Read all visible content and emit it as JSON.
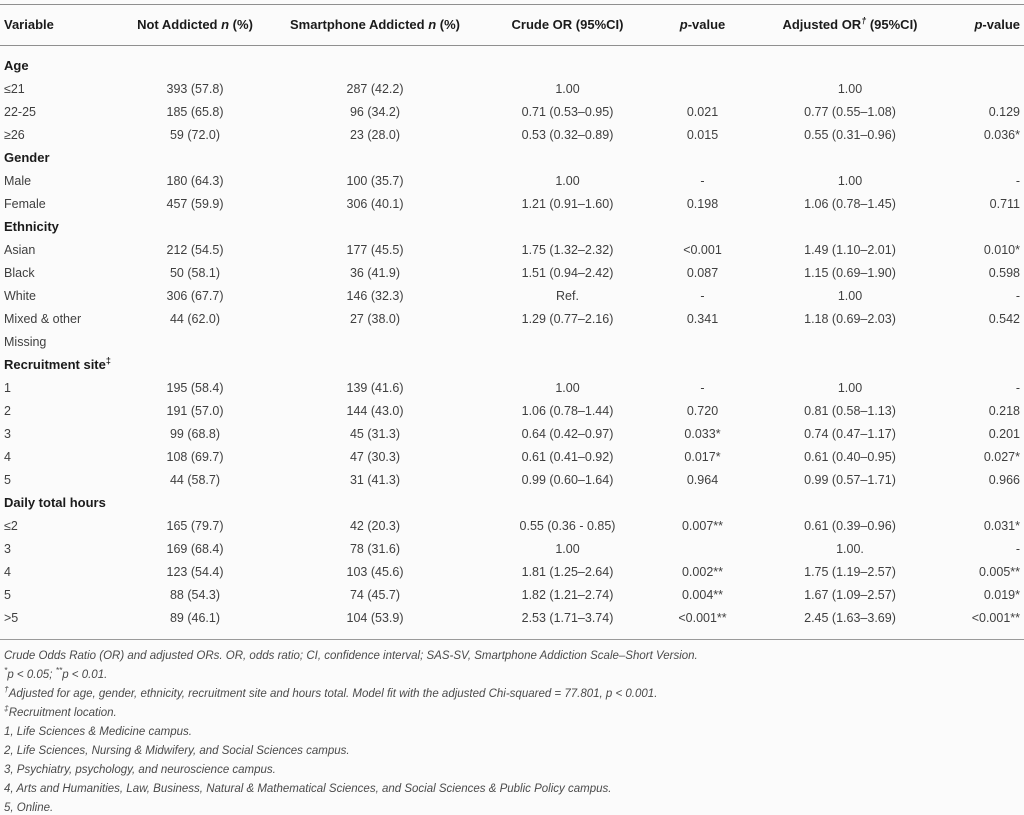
{
  "colors": {
    "background": "#fbfbfb",
    "rule": "#8f8f8f",
    "header_text": "#1b1b1b",
    "body_text": "#3f3f3f",
    "footnote_text": "#4a4a4a"
  },
  "table": {
    "columns": [
      {
        "id": "variable",
        "align": "left",
        "segments": [
          {
            "t": "Variable"
          }
        ]
      },
      {
        "id": "not-addicted",
        "align": "center",
        "segments": [
          {
            "t": "Not Addicted "
          },
          {
            "t": "n",
            "i": true
          },
          {
            "t": " (%)"
          }
        ]
      },
      {
        "id": "smartphone-addicted",
        "align": "center",
        "segments": [
          {
            "t": "Smartphone Addicted "
          },
          {
            "t": "n",
            "i": true
          },
          {
            "t": " (%)"
          }
        ]
      },
      {
        "id": "crude-or",
        "align": "center",
        "segments": [
          {
            "t": "Crude OR (95%CI)"
          }
        ]
      },
      {
        "id": "p-value-crude",
        "align": "center",
        "segments": [
          {
            "t": "p",
            "i": true
          },
          {
            "t": "-value"
          }
        ]
      },
      {
        "id": "adjusted-or",
        "align": "center",
        "segments": [
          {
            "t": "Adjusted OR"
          },
          {
            "t": "†",
            "s": true
          },
          {
            "t": " (95%CI)"
          }
        ]
      },
      {
        "id": "p-value-adjusted",
        "align": "right",
        "segments": [
          {
            "t": "p",
            "i": true
          },
          {
            "t": "-value"
          }
        ]
      }
    ],
    "sections": [
      {
        "label": "Age",
        "rows": [
          [
            "≤21",
            "393 (57.8)",
            "287 (42.2)",
            "1.00",
            "",
            "1.00",
            ""
          ],
          [
            "22-25",
            "185 (65.8)",
            "96 (34.2)",
            "0.71 (0.53–0.95)",
            "0.021",
            "0.77 (0.55–1.08)",
            "0.129"
          ],
          [
            "≥26",
            "59 (72.0)",
            "23 (28.0)",
            "0.53 (0.32–0.89)",
            "0.015",
            "0.55 (0.31–0.96)",
            "0.036*"
          ]
        ]
      },
      {
        "label": "Gender",
        "rows": [
          [
            "Male",
            "180 (64.3)",
            "100 (35.7)",
            "1.00",
            "-",
            "1.00",
            "-"
          ],
          [
            "Female",
            "457 (59.9)",
            "306 (40.1)",
            "1.21 (0.91–1.60)",
            "0.198",
            "1.06 (0.78–1.45)",
            "0.711"
          ]
        ]
      },
      {
        "label": "Ethnicity",
        "rows": [
          [
            "Asian",
            "212 (54.5)",
            "177 (45.5)",
            "1.75 (1.32–2.32)",
            "<0.001",
            "1.49 (1.10–2.01)",
            "0.010*"
          ],
          [
            "Black",
            "50 (58.1)",
            "36 (41.9)",
            "1.51 (0.94–2.42)",
            "0.087",
            "1.15 (0.69–1.90)",
            "0.598"
          ],
          [
            "White",
            "306 (67.7)",
            "146 (32.3)",
            "Ref.",
            "-",
            "1.00",
            "-"
          ],
          [
            "Mixed & other",
            "44 (62.0)",
            "27 (38.0)",
            "1.29 (0.77–2.16)",
            "0.341",
            "1.18 (0.69–2.03)",
            "0.542"
          ],
          [
            "Missing",
            "",
            "",
            "",
            "",
            "",
            ""
          ]
        ]
      },
      {
        "label": "Recruitment site",
        "label_sup": "‡",
        "rows": [
          [
            "1",
            "195 (58.4)",
            "139 (41.6)",
            "1.00",
            "-",
            "1.00",
            "-"
          ],
          [
            "2",
            "191 (57.0)",
            "144 (43.0)",
            "1.06 (0.78–1.44)",
            "0.720",
            "0.81 (0.58–1.13)",
            "0.218"
          ],
          [
            "3",
            "99 (68.8)",
            "45 (31.3)",
            "0.64 (0.42–0.97)",
            "0.033*",
            "0.74 (0.47–1.17)",
            "0.201"
          ],
          [
            "4",
            "108 (69.7)",
            "47 (30.3)",
            "0.61 (0.41–0.92)",
            "0.017*",
            "0.61 (0.40–0.95)",
            "0.027*"
          ],
          [
            "5",
            "44 (58.7)",
            "31 (41.3)",
            "0.99 (0.60–1.64)",
            "0.964",
            "0.99 (0.57–1.71)",
            "0.966"
          ]
        ]
      },
      {
        "label": "Daily total hours",
        "rows": [
          [
            "≤2",
            "165 (79.7)",
            "42 (20.3)",
            "0.55 (0.36 - 0.85)",
            "0.007**",
            "0.61 (0.39–0.96)",
            "0.031*"
          ],
          [
            "3",
            "169 (68.4)",
            "78 (31.6)",
            "1.00",
            "",
            "1.00.",
            "-"
          ],
          [
            "4",
            "123 (54.4)",
            "103 (45.6)",
            "1.81 (1.25–2.64)",
            "0.002**",
            "1.75 (1.19–2.57)",
            "0.005**"
          ],
          [
            "5",
            "88 (54.3)",
            "74 (45.7)",
            "1.82 (1.21–2.74)",
            "0.004**",
            "1.67 (1.09–2.57)",
            "0.019*"
          ],
          [
            ">5",
            "89 (46.1)",
            "104 (53.9)",
            "2.53 (1.71–3.74)",
            "<0.001**",
            "2.45 (1.63–3.69)",
            "<0.001**"
          ]
        ]
      }
    ],
    "footnotes": [
      [
        {
          "t": "Crude Odds Ratio (OR) and adjusted ORs. OR, odds ratio; CI, confidence interval; SAS-SV, Smartphone Addiction Scale–Short Version."
        }
      ],
      [
        {
          "t": "*",
          "s": true
        },
        {
          "t": "p < 0.05; "
        },
        {
          "t": "**",
          "s": true
        },
        {
          "t": "p < 0.01."
        }
      ],
      [
        {
          "t": "†",
          "s": true
        },
        {
          "t": "Adjusted for age, gender, ethnicity, recruitment site and hours total. Model fit with the adjusted Chi-squared = 77.801, p < 0.001."
        }
      ],
      [
        {
          "t": "‡",
          "s": true
        },
        {
          "t": "Recruitment location."
        }
      ],
      [
        {
          "t": "1, Life Sciences & Medicine campus."
        }
      ],
      [
        {
          "t": "2, Life Sciences, Nursing & Midwifery, and Social Sciences campus."
        }
      ],
      [
        {
          "t": "3, Psychiatry, psychology, and neuroscience campus."
        }
      ],
      [
        {
          "t": "4, Arts and Humanities, Law, Business, Natural & Mathematical Sciences, and Social Sciences & Public Policy campus."
        }
      ],
      [
        {
          "t": "5, Online."
        }
      ]
    ]
  }
}
